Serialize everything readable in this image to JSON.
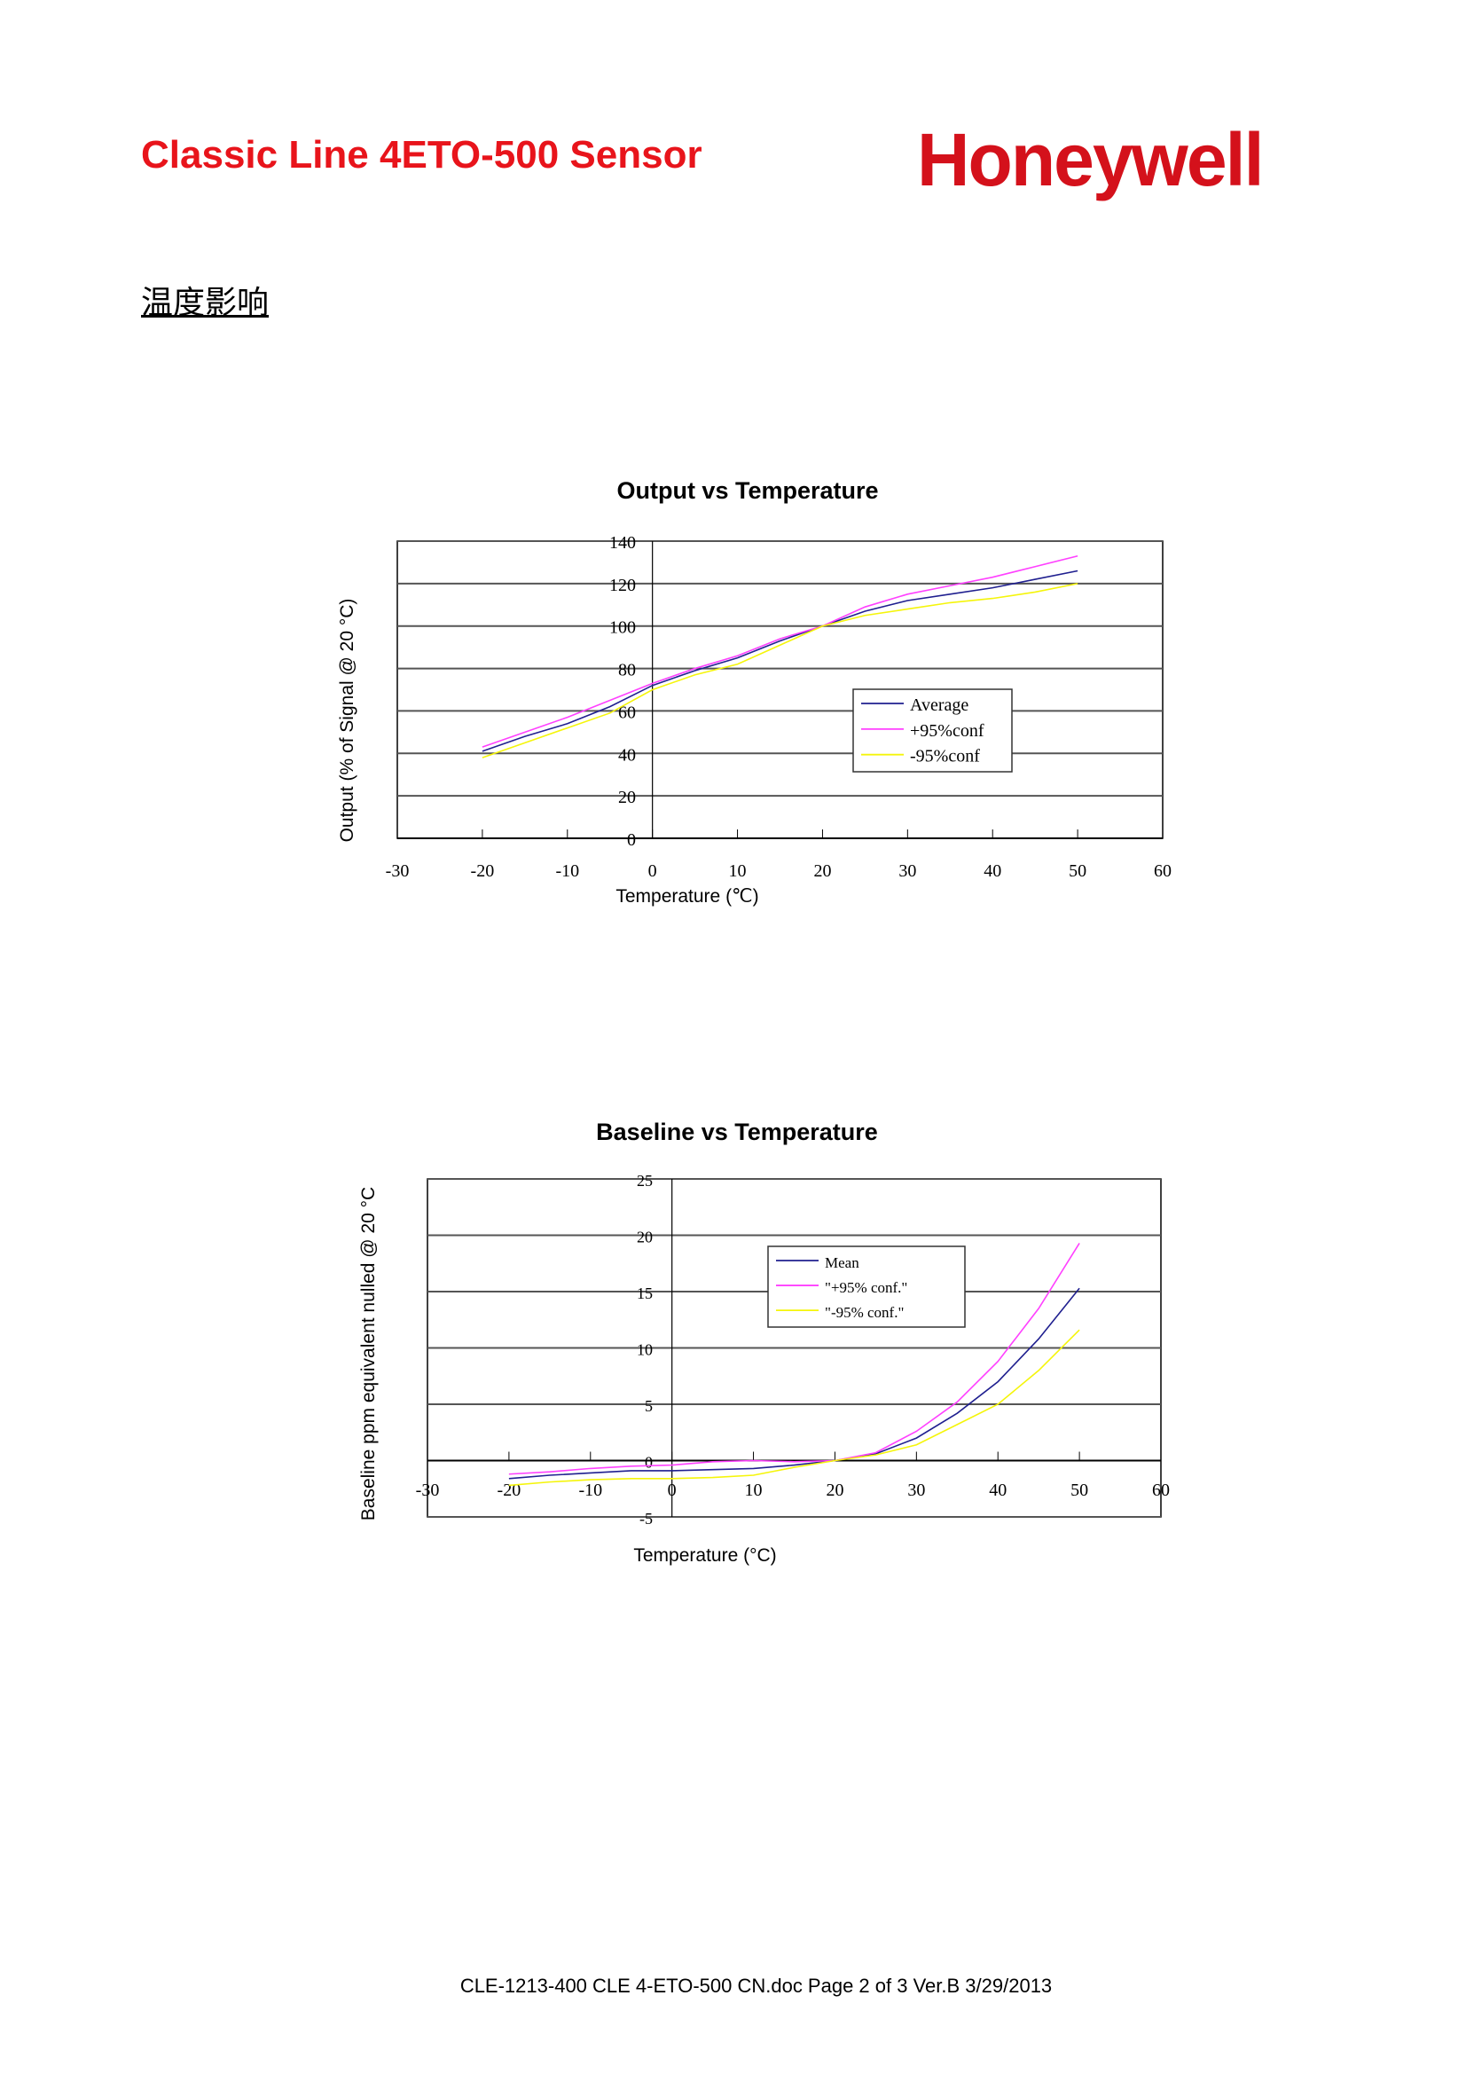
{
  "header": {
    "title": "Classic Line 4ETO-500 Sensor",
    "logo_text": "Honeywell",
    "brand_color": "#d4111b"
  },
  "section_heading": "温度影响",
  "footer": "CLE-1213-400 CLE 4-ETO-500 CN.doc Page 2 of 3  Ver.B  3/29/2013",
  "chart_data": [
    {
      "type": "line",
      "title": "Output vs Temperature",
      "xlabel": "Temperature (℃)",
      "ylabel": "Output (% of Signal @ 20 °C)",
      "xlim": [
        -30,
        60
      ],
      "ylim": [
        0,
        140
      ],
      "xticks": [
        "-30",
        "-20",
        "-10",
        "0",
        "10",
        "20",
        "30",
        "40",
        "50",
        "60"
      ],
      "yticks": [
        "0",
        "20",
        "40",
        "60",
        "80",
        "100",
        "120",
        "140"
      ],
      "grid": true,
      "legend": "center-right",
      "x": [
        -20,
        -15,
        -10,
        -5,
        0,
        5,
        10,
        15,
        20,
        25,
        30,
        35,
        40,
        45,
        50
      ],
      "series": [
        {
          "name": "Average",
          "color": "#1f1f8f",
          "values": [
            41,
            48,
            54,
            62,
            72,
            79,
            85,
            93,
            100,
            107,
            112,
            115,
            118,
            122,
            126
          ]
        },
        {
          "name": "+95%conf",
          "color": "#ff40ff",
          "values": [
            43,
            50,
            57,
            65,
            73,
            80,
            86,
            94,
            100,
            109,
            115,
            119,
            123,
            128,
            133
          ]
        },
        {
          "name": "-95%conf",
          "color": "#f5f50a",
          "values": [
            38,
            45,
            52,
            59,
            70,
            77,
            82,
            91,
            100,
            105,
            108,
            111,
            113,
            116,
            120
          ]
        }
      ]
    },
    {
      "type": "line",
      "title": "Baseline vs Temperature",
      "xlabel": "Temperature (°C)",
      "ylabel": "Baseline ppm equivalent nulled @ 20 °C",
      "xlim": [
        -30,
        60
      ],
      "ylim": [
        -5,
        25
      ],
      "xticks": [
        "-30",
        "-20",
        "-10",
        "0",
        "10",
        "20",
        "30",
        "40",
        "50",
        "60"
      ],
      "yticks": [
        "-5",
        "0",
        "5",
        "10",
        "15",
        "20",
        "25"
      ],
      "grid": true,
      "legend": "top-center",
      "x": [
        -20,
        -15,
        -10,
        -5,
        0,
        5,
        10,
        15,
        20,
        25,
        30,
        35,
        40,
        45,
        50
      ],
      "series": [
        {
          "name": "Mean",
          "color": "#1f1f8f",
          "values": [
            -1.6,
            -1.3,
            -1.1,
            -0.9,
            -0.9,
            -0.8,
            -0.7,
            -0.4,
            0,
            0.6,
            2.0,
            4.2,
            7.0,
            10.8,
            15.3
          ]
        },
        {
          "name": "\"+95% conf.\"",
          "color": "#ff40ff",
          "values": [
            -1.2,
            -1.0,
            -0.7,
            -0.5,
            -0.4,
            -0.1,
            0,
            -0.1,
            0,
            0.7,
            2.6,
            5.2,
            8.8,
            13.5,
            19.3
          ]
        },
        {
          "name": "\"-95% conf.\"",
          "color": "#f5f50a",
          "values": [
            -2.2,
            -1.9,
            -1.7,
            -1.6,
            -1.6,
            -1.5,
            -1.3,
            -0.6,
            0,
            0.5,
            1.4,
            3.2,
            5.0,
            8.0,
            11.6
          ]
        }
      ]
    }
  ]
}
